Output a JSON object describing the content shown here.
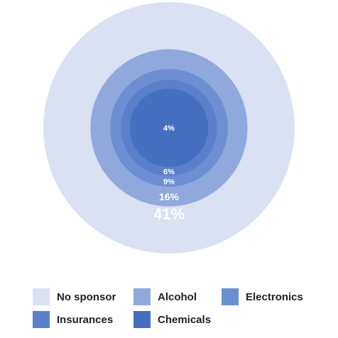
{
  "chart_data": {
    "type": "pie",
    "categories": [
      "No sponsor",
      "Alcohol",
      "Electronics",
      "Insurances",
      "Chemicals"
    ],
    "values": [
      41,
      16,
      9,
      6,
      4
    ],
    "labels": [
      "41%",
      "16%",
      "9%",
      "6%",
      "4%"
    ],
    "colors": [
      "#d9e1f2",
      "#8fa9dc",
      "#6b8fd2",
      "#5a80ca",
      "#456fbf"
    ],
    "label_color": "#ffffff",
    "legend_position": "bottom",
    "grid": false
  }
}
